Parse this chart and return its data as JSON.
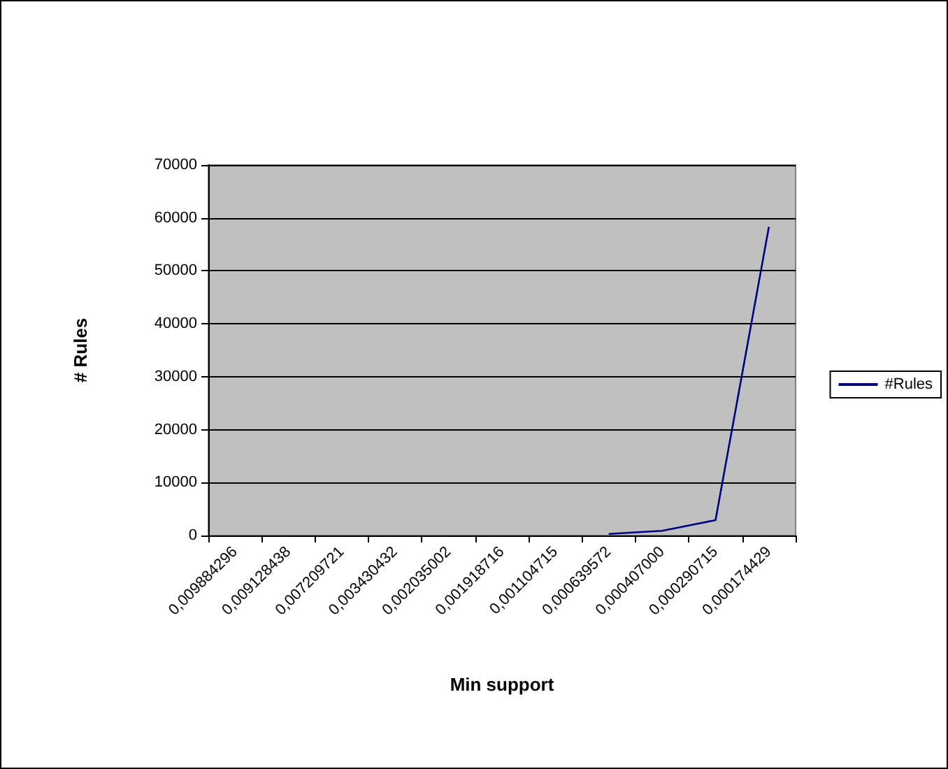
{
  "chart_data": {
    "type": "line",
    "xlabel": "Min support",
    "ylabel": "# Rules",
    "categories": [
      "0,009884296",
      "0,009128438",
      "0,007209721",
      "0,003430432",
      "0,002035002",
      "0,001918716",
      "0,001104715",
      "0,000639572",
      "0,000407000",
      "0,000290715",
      "0,000174429"
    ],
    "series": [
      {
        "name": "#Rules",
        "color": "#000080",
        "values": [
          null,
          null,
          null,
          null,
          null,
          null,
          null,
          300,
          900,
          2900,
          58300
        ]
      }
    ],
    "ylim": [
      0,
      70000
    ],
    "yticks": [
      0,
      10000,
      20000,
      30000,
      40000,
      50000,
      60000,
      70000
    ],
    "grid": "y",
    "legend": "right",
    "marker": "none",
    "line_style": "solid"
  }
}
